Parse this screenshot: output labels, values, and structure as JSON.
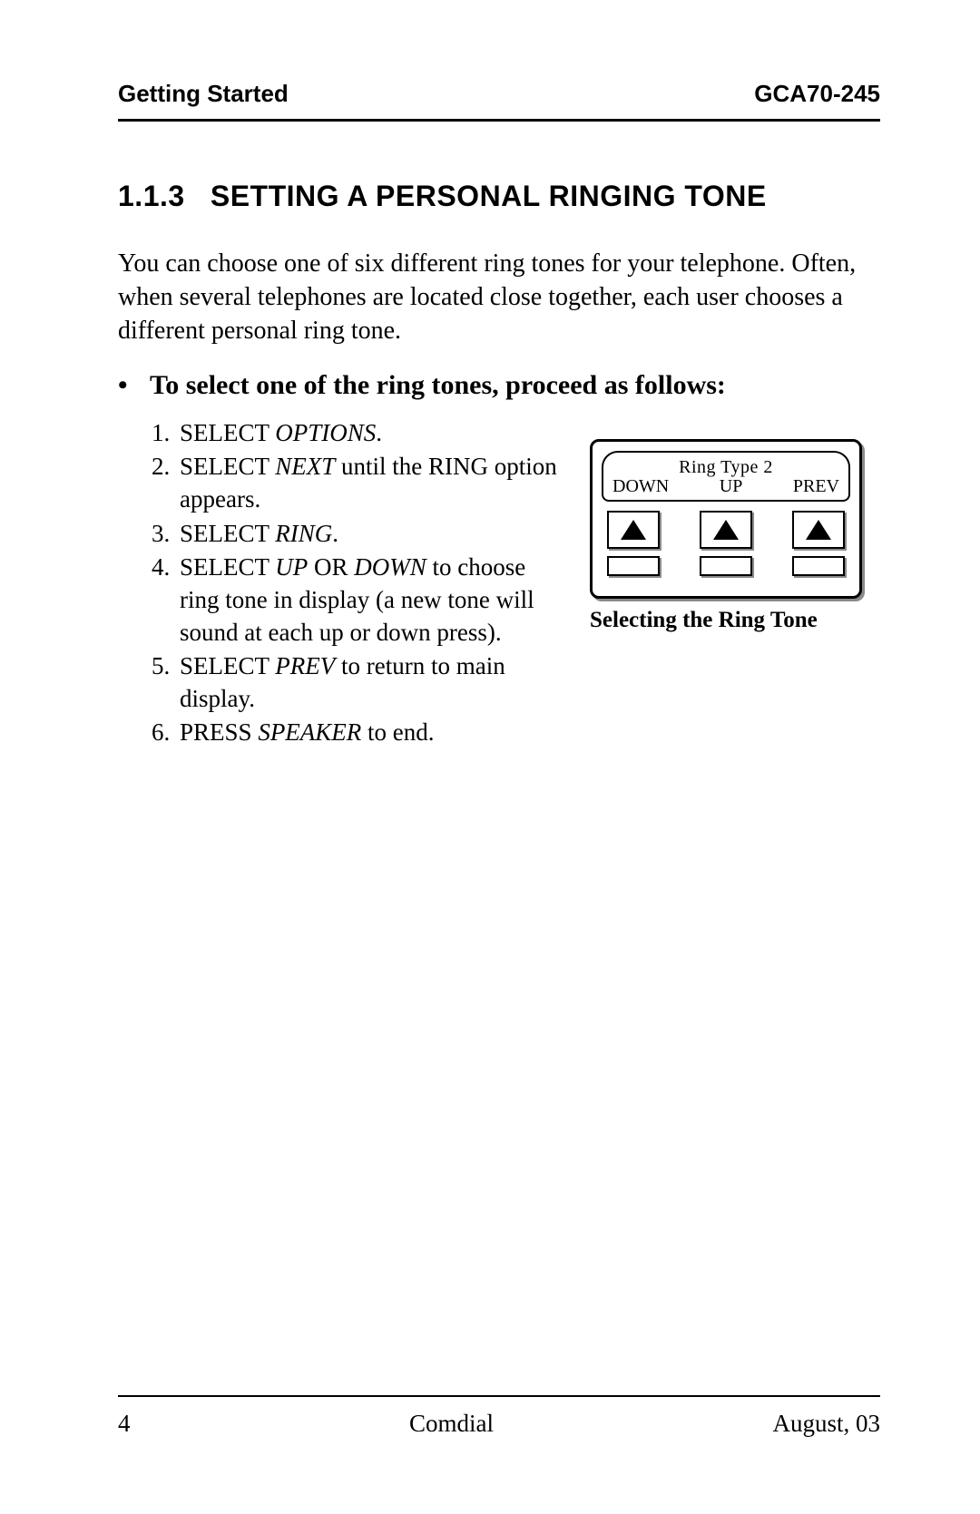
{
  "header": {
    "left": "Getting Started",
    "right": "GCA70-245"
  },
  "section": {
    "number": "1.1.3",
    "title": "SETTING A PERSONAL RINGING TONE"
  },
  "intro": "You can choose one of six different ring tones for your telephone. Often, when several telephones are located close together, each user chooses a different personal ring tone.",
  "subheading": "To select one of the ring tones, proceed as follows:",
  "steps": [
    {
      "pre": "SELECT ",
      "em": "OPTIONS",
      "post": "."
    },
    {
      "pre": "SELECT ",
      "em": "NEXT",
      "post": " until the RING option appears."
    },
    {
      "pre": "SELECT ",
      "em": "RING",
      "post": "."
    },
    {
      "pre": "SELECT ",
      "em": "UP",
      "mid": " OR ",
      "em2": "DOWN",
      "post": " to choose ring tone in display (a new tone will sound at each up or down press)."
    },
    {
      "pre": "SELECT ",
      "em": "PREV",
      "post": " to return to main display."
    },
    {
      "pre": "PRESS ",
      "em": "SPEAKER",
      "post": " to end."
    }
  ],
  "figure": {
    "lcd_line1": "Ring Type 2",
    "lcd_labels": {
      "left": "DOWN",
      "center": "UP",
      "right": "PREV"
    },
    "caption": "Selecting the Ring Tone"
  },
  "footer": {
    "page": "4",
    "center": "Comdial",
    "right": "August, 03"
  },
  "colors": {
    "text": "#000000",
    "background": "#ffffff",
    "shadow": "#8a8a8a"
  }
}
